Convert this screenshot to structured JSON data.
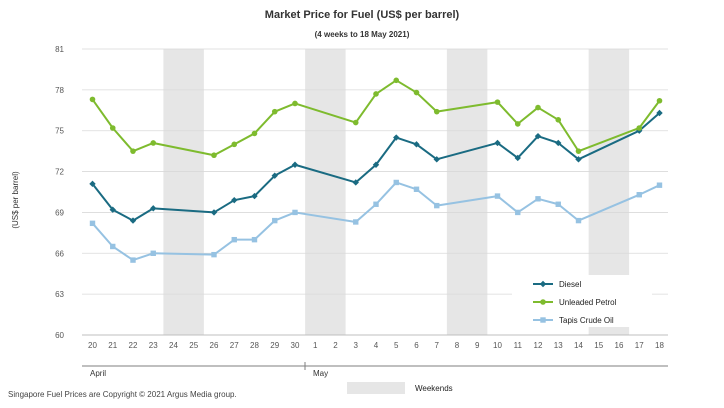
{
  "chart_data": {
    "type": "line",
    "title": "Market Price for Fuel (US$  per barrel)",
    "subtitle": "(4 weeks to 18 May  2021)",
    "ylabel": "(US$ per barrel)",
    "xlabel": "",
    "ylim": [
      60,
      81
    ],
    "yticks": [
      "81",
      "78",
      "75",
      "72",
      "69",
      "66",
      "63",
      "60"
    ],
    "grid": true,
    "categories": [
      "20",
      "21",
      "22",
      "23",
      "24",
      "25",
      "26",
      "27",
      "28",
      "29",
      "30",
      "1",
      "2",
      "3",
      "4",
      "5",
      "6",
      "7",
      "8",
      "9",
      "10",
      "11",
      "12",
      "13",
      "14",
      "15",
      "16",
      "17",
      "18"
    ],
    "month_groups": [
      {
        "label": "April",
        "start": 0,
        "end": 10
      },
      {
        "label": "May",
        "start": 11,
        "end": 28
      }
    ],
    "weekend_indices": [
      [
        4,
        5
      ],
      [
        11,
        12
      ],
      [
        18,
        19
      ],
      [
        25,
        26
      ]
    ],
    "weekend_label": "Weekends",
    "series": [
      {
        "name": "Diesel",
        "color": "#1a6b82",
        "marker": "diamond",
        "values": [
          71.1,
          69.2,
          68.4,
          69.3,
          null,
          null,
          69.0,
          69.9,
          70.2,
          71.7,
          72.5,
          null,
          null,
          71.2,
          72.5,
          74.5,
          74.0,
          72.9,
          null,
          null,
          74.1,
          73.0,
          74.6,
          74.1,
          72.9,
          null,
          null,
          75.0,
          76.3
        ]
      },
      {
        "name": "Unleaded Petrol",
        "color": "#7ebb2e",
        "marker": "circle",
        "values": [
          77.3,
          75.2,
          73.5,
          74.1,
          null,
          null,
          73.2,
          74.0,
          74.8,
          76.4,
          77.0,
          null,
          null,
          75.6,
          77.7,
          78.7,
          77.8,
          76.4,
          null,
          null,
          77.1,
          75.5,
          76.7,
          75.8,
          73.5,
          null,
          null,
          75.2,
          77.2
        ]
      },
      {
        "name": "Tapis Crude Oil",
        "color": "#96c2e2",
        "marker": "square",
        "values": [
          68.2,
          66.5,
          65.5,
          66.0,
          null,
          null,
          65.9,
          67.0,
          67.0,
          68.4,
          69.0,
          null,
          null,
          68.3,
          69.6,
          71.2,
          70.7,
          69.5,
          null,
          null,
          70.2,
          69.0,
          70.0,
          69.6,
          68.4,
          null,
          null,
          70.3,
          71.0
        ]
      }
    ]
  },
  "footer": {
    "copyright": "Singapore  Fuel Prices are Copyright © 2021  Argus Media group."
  }
}
